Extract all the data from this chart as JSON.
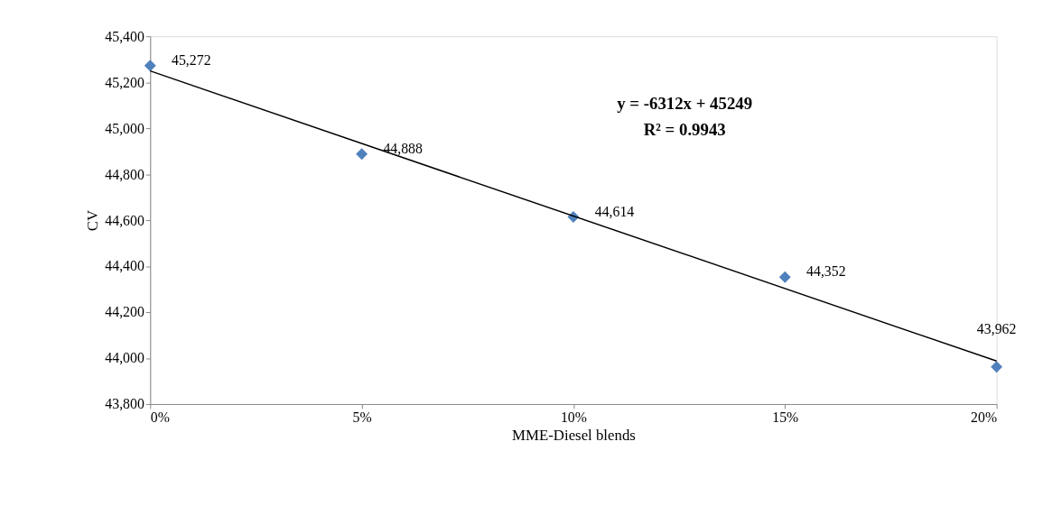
{
  "chart_data": {
    "type": "scatter",
    "xlabel": "MME-Diesel blends",
    "ylabel": "CV",
    "x": [
      0,
      0.05,
      0.1,
      0.15,
      0.2
    ],
    "series": [
      {
        "color": "#4f81bd",
        "values": [
          45272,
          44888,
          44614,
          44352,
          43962
        ],
        "value_labels": [
          "45,272",
          "44,888",
          "44,614",
          "44,352",
          "43,962"
        ]
      },
      {
        "type": "line",
        "marker": "none",
        "color": "#000000",
        "x": [
          0,
          0.2
        ],
        "values": [
          45249,
          43987
        ]
      }
    ],
    "marker": "diamond",
    "line_style": "solid",
    "grid": false,
    "xlim": [
      0,
      0.2
    ],
    "xticks": [
      {
        "value": 0,
        "label": "0%"
      },
      {
        "value": 0.05,
        "label": "5%"
      },
      {
        "value": 0.1,
        "label": "10%"
      },
      {
        "value": 0.15,
        "label": "15%"
      },
      {
        "value": 0.2,
        "label": "20%"
      }
    ],
    "ylim": [
      43800,
      45400
    ],
    "yticks": [
      {
        "value": 43800,
        "label": "43,800"
      },
      {
        "value": 44000,
        "label": "44,000"
      },
      {
        "value": 44200,
        "label": "44,200"
      },
      {
        "value": 44400,
        "label": "44,400"
      },
      {
        "value": 44600,
        "label": "44,600"
      },
      {
        "value": 44800,
        "label": "44,800"
      },
      {
        "value": 45000,
        "label": "45,000"
      },
      {
        "value": 45200,
        "label": "45,200"
      },
      {
        "value": 45400,
        "label": "45,400"
      }
    ],
    "annotations": [
      "y = -6312x + 45249",
      "R² = 0.9943"
    ]
  }
}
